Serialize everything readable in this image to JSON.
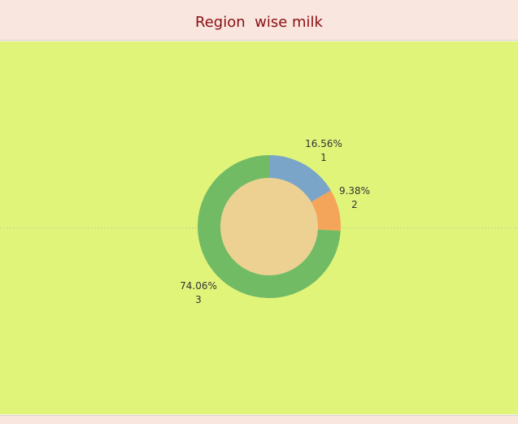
{
  "chart_data": {
    "type": "pie",
    "title": "Region  wise milk",
    "categories": [
      "1",
      "2",
      "3"
    ],
    "values": [
      16.56,
      9.38,
      74.06
    ],
    "percent_labels": [
      "16.56%",
      "9.38%",
      "74.06%"
    ],
    "colors": [
      "#7aa5c9",
      "#f5a55a",
      "#72bb65"
    ],
    "center_color": "#ecd193",
    "background_color": "#e1f47a",
    "title_color": "#8b0e12"
  }
}
